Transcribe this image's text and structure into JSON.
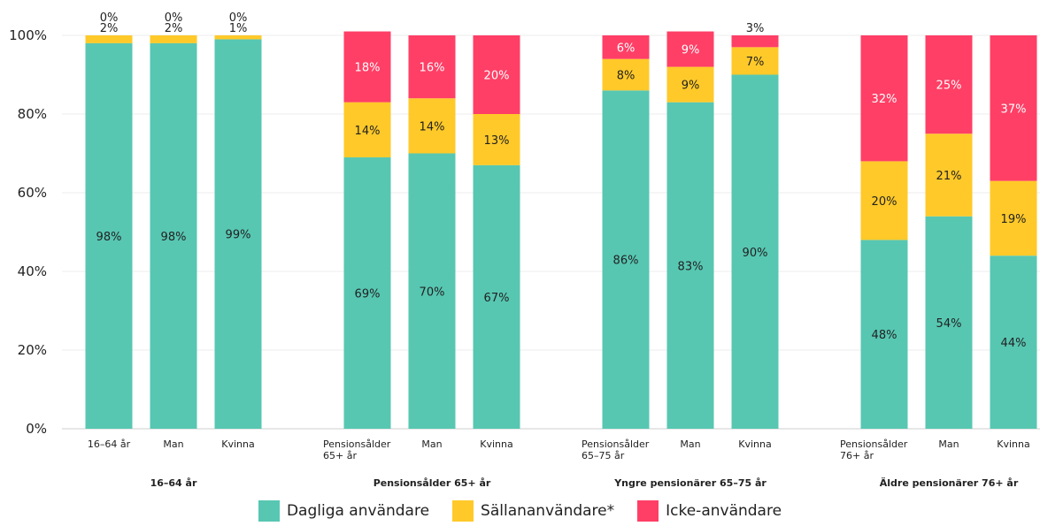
{
  "chart_data": {
    "type": "bar",
    "stacked": true,
    "ylim": [
      0,
      100
    ],
    "yticks": [
      "0%",
      "20%",
      "40%",
      "60%",
      "80%",
      "100%"
    ],
    "grid": true,
    "legend_position": "bottom",
    "groups": [
      "16–64 år",
      "Pensionsålder 65+ år",
      "Yngre pensionärer 65–75 år",
      "Äldre pensionärer 76+ år"
    ],
    "bars": [
      {
        "label": [
          "16–64 år"
        ],
        "group": 0,
        "values": [
          98,
          2,
          0
        ],
        "labels": [
          "98%",
          "2%",
          "0%"
        ]
      },
      {
        "label": [
          "Man"
        ],
        "group": 0,
        "values": [
          98,
          2,
          0
        ],
        "labels": [
          "98%",
          "2%",
          "0%"
        ]
      },
      {
        "label": [
          "Kvinna"
        ],
        "group": 0,
        "values": [
          99,
          1,
          0
        ],
        "labels": [
          "99%",
          "1%",
          "0%"
        ]
      },
      {
        "label": [
          "Pensionsålder",
          "65+ år"
        ],
        "group": 1,
        "values": [
          69,
          14,
          18
        ],
        "labels": [
          "69%",
          "14%",
          "18%"
        ]
      },
      {
        "label": [
          "Man"
        ],
        "group": 1,
        "values": [
          70,
          14,
          16
        ],
        "labels": [
          "70%",
          "14%",
          "16%"
        ]
      },
      {
        "label": [
          "Kvinna"
        ],
        "group": 1,
        "values": [
          67,
          13,
          20
        ],
        "labels": [
          "67%",
          "13%",
          "20%"
        ]
      },
      {
        "label": [
          "Pensionsålder",
          "65–75 år"
        ],
        "group": 2,
        "values": [
          86,
          8,
          6
        ],
        "labels": [
          "86%",
          "8%",
          "6%"
        ]
      },
      {
        "label": [
          "Man"
        ],
        "group": 2,
        "values": [
          83,
          9,
          9
        ],
        "labels": [
          "83%",
          "9%",
          "9%"
        ]
      },
      {
        "label": [
          "Kvinna"
        ],
        "group": 2,
        "values": [
          90,
          7,
          3
        ],
        "labels": [
          "90%",
          "7%",
          "3%"
        ]
      },
      {
        "label": [
          "Pensionsålder",
          "76+ år"
        ],
        "group": 3,
        "values": [
          48,
          20,
          32
        ],
        "labels": [
          "48%",
          "20%",
          "32%"
        ]
      },
      {
        "label": [
          "Man"
        ],
        "group": 3,
        "values": [
          54,
          21,
          25
        ],
        "labels": [
          "54%",
          "21%",
          "25%"
        ]
      },
      {
        "label": [
          "Kvinna"
        ],
        "group": 3,
        "values": [
          44,
          19,
          37
        ],
        "labels": [
          "44%",
          "19%",
          "37%"
        ]
      }
    ],
    "series": [
      {
        "name": "Dagliga användare",
        "color": "#57c7b2"
      },
      {
        "name": "Sällananvändare*",
        "color": "#ffc929"
      },
      {
        "name": "Icke-användare",
        "color": "#ff3f66"
      }
    ]
  }
}
